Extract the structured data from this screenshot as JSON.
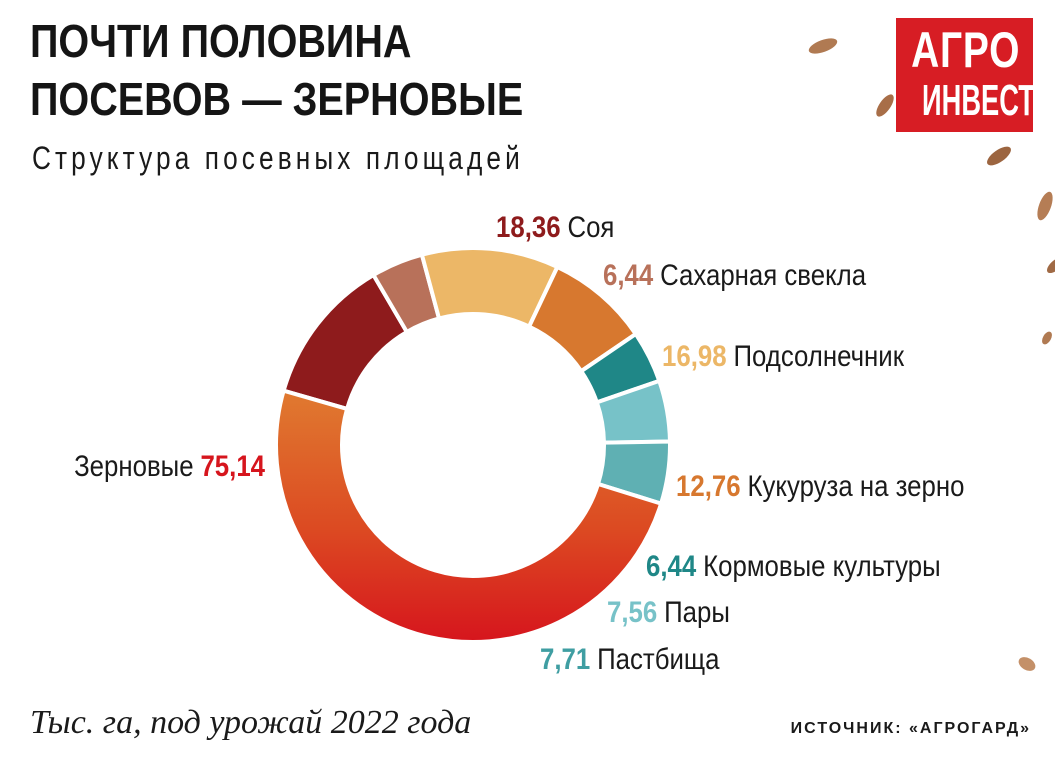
{
  "title_lines": [
    "ПОЧТИ ПОЛОВИНА",
    "ПОСЕВОВ — ЗЕРНОВЫЕ"
  ],
  "subtitle": "Структура посевных площадей",
  "logo": {
    "line1": "АГРО",
    "line2": "ИНВЕСТОР"
  },
  "footnote": "Тыс. га, под урожай 2022 года",
  "source": "ИСТОЧНИК: «АГРОГАРД»",
  "chart_data": {
    "type": "pie",
    "variant": "donut",
    "unit": "Тыс. га",
    "categories": [
      "Соя",
      "Сахарная свекла",
      "Подсолнечник",
      "Кукуруза на зерно",
      "Кормовые культуры",
      "Пары",
      "Пастбища",
      "Зерновые"
    ],
    "values": [
      18.36,
      6.44,
      16.98,
      12.76,
      6.44,
      7.56,
      7.71,
      75.14
    ],
    "value_labels": [
      "18,36",
      "6,44",
      "16,98",
      "12,76",
      "6,44",
      "7,56",
      "7,71",
      "75,14"
    ],
    "colors": [
      "#8e1b1c",
      "#b8715a",
      "#ecb767",
      "#d7782f",
      "#1f8787",
      "#77c2c8",
      "#5fb0b3",
      "#db2a1f"
    ]
  }
}
